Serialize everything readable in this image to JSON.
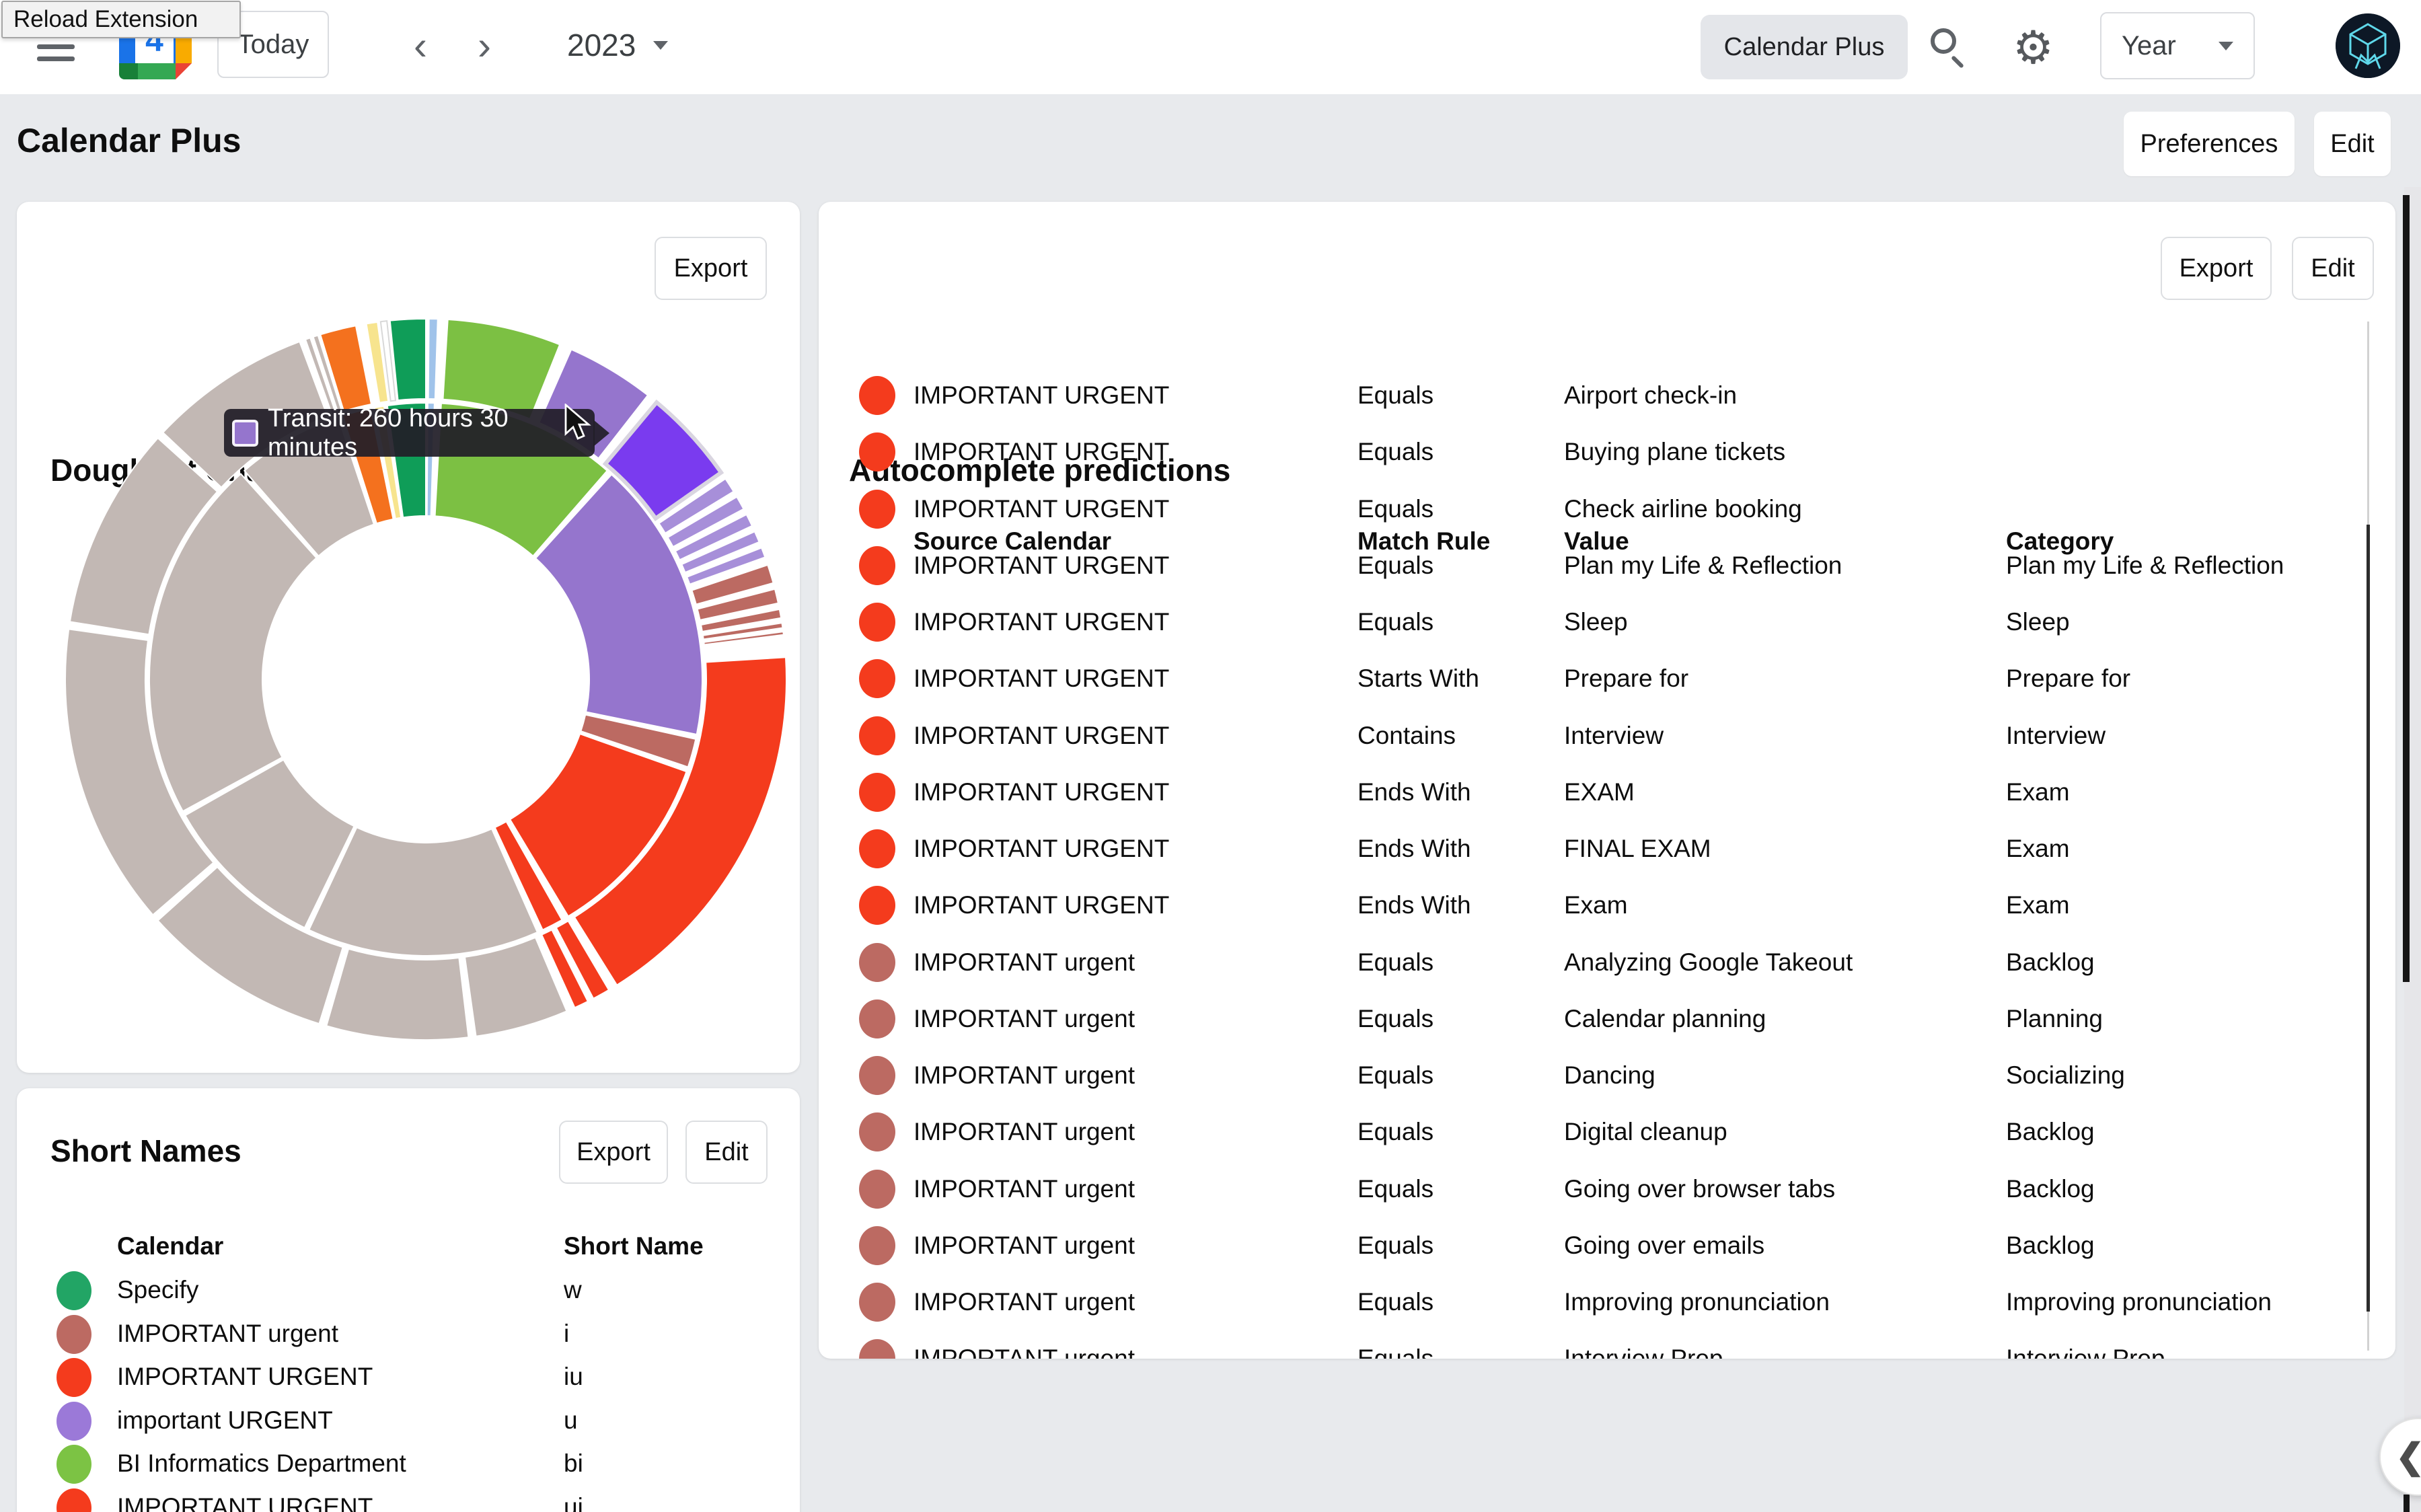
{
  "topbar": {
    "reload_tooltip": "Reload Extension",
    "calendar_icon_day": "4",
    "today_label": "Today",
    "prev": "‹",
    "next": "›",
    "year_title": "2023",
    "app_pill": "Calendar Plus",
    "gear_glyph": "⚙",
    "view_select": "Year"
  },
  "header": {
    "title": "Calendar Plus",
    "preferences_label": "Preferences",
    "edit_label": "Edit"
  },
  "doughnut_card": {
    "title": "Doughnut Chart",
    "export_label": "Export"
  },
  "chart_data": {
    "type": "pie",
    "subtype": "sunburst-doughnut-2-rings",
    "title": "Doughnut Chart",
    "angle_unit": "degrees clockwise from 12 o'clock",
    "geometry": {
      "center": [
        538,
        538
      ],
      "hole_radius": 240,
      "inner_ring": [
        243,
        411
      ],
      "outer_ring": [
        417,
        536
      ]
    },
    "colors": {
      "red": "#F43B1D",
      "rose": "#BC6A62",
      "purple": "#9575CD",
      "purple_light": "#A78FD9",
      "purple_bright": "#7A3BEF",
      "green": "#7CC043",
      "teal": "#0F9D58",
      "blue": "#A0C3EA",
      "orange": "#F4711E",
      "yellow": "#F7E48E",
      "taupe": "#C2B8B4",
      "white": "#FFFFFF"
    },
    "tooltip": {
      "label": "Transit",
      "text": "Transit: 260 hours 30 minutes",
      "value_hours": 260.5,
      "color": "#9575CD"
    },
    "highlighted_segment": {
      "ring": "outer",
      "color": "#7A3BEF",
      "label": "Transit"
    },
    "rings": {
      "inner": [
        {
          "c": "teal",
          "a0": 352,
          "a1": 360
        },
        {
          "c": "blue",
          "a0": 0.4,
          "a1": 1.8
        },
        {
          "c": "green",
          "a0": 3.2,
          "a1": 41
        },
        {
          "c": "purple",
          "a0": 42.2,
          "a1": 101.5
        },
        {
          "c": "rose",
          "a0": 102.5,
          "a1": 108.5
        },
        {
          "c": "red",
          "a0": 109.5,
          "a1": 149
        },
        {
          "c": "red",
          "a0": 150.5,
          "a1": 155
        },
        {
          "c": "taupe",
          "a0": 156.2,
          "a1": 205
        },
        {
          "c": "taupe",
          "a0": 206,
          "a1": 240.5
        },
        {
          "c": "taupe",
          "a0": 241.5,
          "a1": 318
        },
        {
          "c": "taupe",
          "a0": 319,
          "a1": 341.5
        },
        {
          "c": "orange",
          "a0": 342.5,
          "a1": 348.5
        },
        {
          "c": "yellow",
          "a0": 349.3,
          "a1": 351.3
        }
      ],
      "outer": [
        {
          "c": "teal",
          "a0": 354.3,
          "a1": 360
        },
        {
          "c": "blue",
          "a0": 0.5,
          "a1": 1.9
        },
        {
          "c": "green",
          "a0": 3.5,
          "a1": 21.8
        },
        {
          "c": "purple",
          "a0": 23.8,
          "a1": 38
        },
        {
          "c": "purple_bright",
          "a0": 39.8,
          "a1": 55,
          "highlight": true
        },
        {
          "c": "purple_light",
          "a0": 56.2,
          "a1": 58.6
        },
        {
          "c": "purple_light",
          "a0": 59.6,
          "a1": 61.8
        },
        {
          "c": "purple_light",
          "a0": 62.8,
          "a1": 64.8
        },
        {
          "c": "purple_light",
          "a0": 65.8,
          "a1": 67.6
        },
        {
          "c": "purple_light",
          "a0": 68.6,
          "a1": 70.2
        },
        {
          "c": "rose",
          "a0": 71.5,
          "a1": 74.5
        },
        {
          "c": "rose",
          "a0": 75.5,
          "a1": 77.8
        },
        {
          "c": "rose",
          "a0": 78.8,
          "a1": 80.2
        },
        {
          "c": "rose",
          "a0": 81,
          "a1": 81.8
        },
        {
          "c": "rose",
          "a0": 82.4,
          "a1": 82.9
        },
        {
          "c": "red",
          "a0": 86.5,
          "a1": 148
        },
        {
          "c": "red",
          "a0": 149.5,
          "a1": 152.3
        },
        {
          "c": "red",
          "a0": 153.3,
          "a1": 155.6
        },
        {
          "c": "taupe",
          "a0": 157,
          "a1": 172
        },
        {
          "c": "taupe",
          "a0": 173.2,
          "a1": 196
        },
        {
          "c": "taupe",
          "a0": 197.2,
          "a1": 228
        },
        {
          "c": "taupe",
          "a0": 229.2,
          "a1": 278
        },
        {
          "c": "taupe",
          "a0": 279.2,
          "a1": 312
        },
        {
          "c": "taupe",
          "a0": 313.2,
          "a1": 339.5
        },
        {
          "c": "taupe",
          "a0": 340.5,
          "a1": 341.3
        },
        {
          "c": "taupe",
          "a0": 341.8,
          "a1": 342.6
        },
        {
          "c": "orange",
          "a0": 343,
          "a1": 348.8
        },
        {
          "c": "yellow",
          "a0": 350.5,
          "a1": 352.3
        },
        {
          "c": "white",
          "a0": 352.8,
          "a1": 353.8
        }
      ]
    }
  },
  "short_names": {
    "title": "Short Names",
    "export_label": "Export",
    "edit_label": "Edit",
    "columns": [
      "Calendar",
      "Short Name"
    ],
    "rows": [
      {
        "color": "#22A565",
        "calendar": "Specify",
        "short": "w"
      },
      {
        "color": "#BC6A62",
        "calendar": "IMPORTANT urgent",
        "short": "i"
      },
      {
        "color": "#F43B1D",
        "calendar": "IMPORTANT URGENT",
        "short": "iu"
      },
      {
        "color": "#9B79D8",
        "calendar": "important URGENT",
        "short": "u"
      },
      {
        "color": "#7CC344",
        "calendar": "BI Informatics Department",
        "short": "bi"
      },
      {
        "color": "#F43B1D",
        "calendar": "IMPORTANT URGENT",
        "short": "ui",
        "clipped": true
      }
    ]
  },
  "autocomplete": {
    "title": "Autocomplete predictions",
    "export_label": "Export",
    "edit_label": "Edit",
    "columns": [
      "Source Calendar",
      "Match Rule",
      "Value",
      "Category"
    ],
    "rows": [
      {
        "color": "#F43B1D",
        "source": "IMPORTANT URGENT",
        "match": "Equals",
        "value": "Airport check-in",
        "category": ""
      },
      {
        "color": "#F43B1D",
        "source": "IMPORTANT URGENT",
        "match": "Equals",
        "value": "Buying plane tickets",
        "category": ""
      },
      {
        "color": "#F43B1D",
        "source": "IMPORTANT URGENT",
        "match": "Equals",
        "value": "Check airline booking",
        "category": ""
      },
      {
        "color": "#F43B1D",
        "source": "IMPORTANT URGENT",
        "match": "Equals",
        "value": "Plan my Life & Reflection",
        "category": "Plan my Life & Reflection"
      },
      {
        "color": "#F43B1D",
        "source": "IMPORTANT URGENT",
        "match": "Equals",
        "value": "Sleep",
        "category": "Sleep"
      },
      {
        "color": "#F43B1D",
        "source": "IMPORTANT URGENT",
        "match": "Starts With",
        "value": "Prepare for",
        "category": "Prepare for"
      },
      {
        "color": "#F43B1D",
        "source": "IMPORTANT URGENT",
        "match": "Contains",
        "value": "Interview",
        "category": "Interview"
      },
      {
        "color": "#F43B1D",
        "source": "IMPORTANT URGENT",
        "match": "Ends With",
        "value": "EXAM",
        "category": "Exam"
      },
      {
        "color": "#F43B1D",
        "source": "IMPORTANT URGENT",
        "match": "Ends With",
        "value": "FINAL EXAM",
        "category": "Exam"
      },
      {
        "color": "#F43B1D",
        "source": "IMPORTANT URGENT",
        "match": "Ends With",
        "value": "Exam",
        "category": "Exam"
      },
      {
        "color": "#BC6A62",
        "source": "IMPORTANT urgent",
        "match": "Equals",
        "value": "Analyzing Google Takeout",
        "category": "Backlog"
      },
      {
        "color": "#BC6A62",
        "source": "IMPORTANT urgent",
        "match": "Equals",
        "value": "Calendar planning",
        "category": "Planning"
      },
      {
        "color": "#BC6A62",
        "source": "IMPORTANT urgent",
        "match": "Equals",
        "value": "Dancing",
        "category": "Socializing"
      },
      {
        "color": "#BC6A62",
        "source": "IMPORTANT urgent",
        "match": "Equals",
        "value": "Digital cleanup",
        "category": "Backlog"
      },
      {
        "color": "#BC6A62",
        "source": "IMPORTANT urgent",
        "match": "Equals",
        "value": "Going over browser tabs",
        "category": "Backlog"
      },
      {
        "color": "#BC6A62",
        "source": "IMPORTANT urgent",
        "match": "Equals",
        "value": "Going over emails",
        "category": "Backlog"
      },
      {
        "color": "#BC6A62",
        "source": "IMPORTANT urgent",
        "match": "Equals",
        "value": "Improving pronunciation",
        "category": "Improving pronunciation"
      },
      {
        "color": "#BC6A62",
        "source": "IMPORTANT urgent",
        "match": "Equals",
        "value": "Interview Prep",
        "category": "Interview Prep",
        "clipped": true
      }
    ]
  },
  "floating_button": {
    "glyph": "❮"
  }
}
